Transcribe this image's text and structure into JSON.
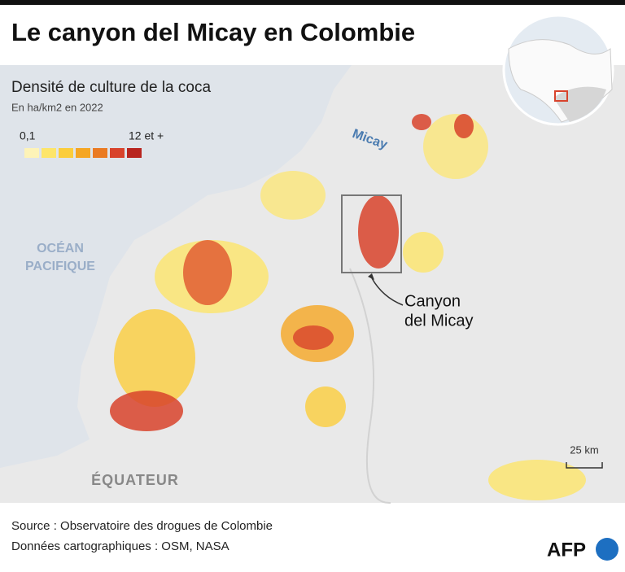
{
  "header": {
    "title": "Le canyon del Micay en Colombie"
  },
  "legend": {
    "title": "Densité de culture de la coca",
    "subtitle": "En ha/km2 en 2022",
    "min_label": "0,1",
    "max_label": "12 et +",
    "colors": [
      "#fdf3b8",
      "#fde56a",
      "#fbcd3c",
      "#f5a623",
      "#ea7a22",
      "#d8432c",
      "#b8251f"
    ]
  },
  "map": {
    "river_label": "Micay",
    "ocean_label_1": "OCÉAN",
    "ocean_label_2": "PACIFIQUE",
    "callout_1": "Canyon",
    "callout_2": "del Micay",
    "country_label": "ÉQUATEUR",
    "scale_label": "25 km"
  },
  "footer": {
    "source": "Source : Observatoire des drogues de Colombie",
    "map_data": "Données cartographiques : OSM, NASA",
    "logo": "AFP"
  }
}
